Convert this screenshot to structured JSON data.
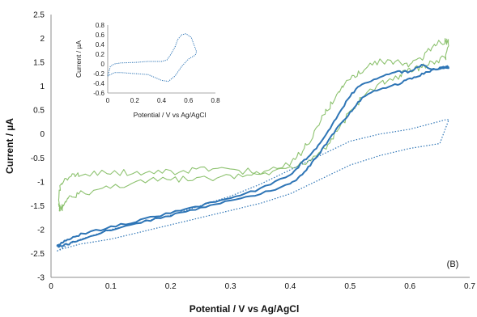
{
  "chart_data": [
    {
      "type": "line",
      "panel_label": "(B)",
      "xlabel": "Potential  / V vs Ag/AgCl",
      "ylabel": "Current / µA",
      "xlim": [
        0,
        0.7
      ],
      "ylim": [
        -3,
        2.5
      ],
      "x_ticks": [
        "0",
        "0.1",
        "0.2",
        "0.3",
        "0.4",
        "0.5",
        "0.6",
        "0.7"
      ],
      "y_ticks": [
        "2.5",
        "2",
        "1.5",
        "1",
        "0.5",
        "0",
        "-0.5",
        "-1",
        "-1.5",
        "-2",
        "-2.5",
        "-3"
      ],
      "grid": false,
      "colors": {
        "green": "#8dc26f",
        "blue": "#2e75b6",
        "dotted": "#2e75b6",
        "axis": "#8c8c8c"
      },
      "series": [
        {
          "style": "green-noisy",
          "x": [
            0.013,
            0.015,
            0.02,
            0.03,
            0.05,
            0.1,
            0.15,
            0.2,
            0.25,
            0.3,
            0.35,
            0.4,
            0.43,
            0.46,
            0.48,
            0.5,
            0.52,
            0.55,
            0.58,
            0.6,
            0.62,
            0.64,
            0.66,
            0.665,
            0.66,
            0.64,
            0.62,
            0.6,
            0.58,
            0.55,
            0.52,
            0.5,
            0.48,
            0.46,
            0.44,
            0.42,
            0.4,
            0.35,
            0.3,
            0.25,
            0.2,
            0.15,
            0.1,
            0.05,
            0.03,
            0.015,
            0.013
          ],
          "y": [
            -1.5,
            -1.6,
            -1.5,
            -1.35,
            -1.25,
            -1.1,
            -1.0,
            -0.95,
            -0.95,
            -0.9,
            -0.85,
            -0.75,
            -0.55,
            -0.25,
            0.1,
            0.45,
            0.75,
            1.05,
            1.2,
            1.35,
            1.4,
            1.5,
            1.6,
            1.9,
            1.95,
            1.85,
            1.55,
            1.45,
            1.5,
            1.5,
            1.35,
            1.15,
            0.85,
            0.45,
            0.0,
            -0.35,
            -0.6,
            -0.8,
            -0.75,
            -0.75,
            -0.8,
            -0.8,
            -0.8,
            -0.85,
            -0.9,
            -1.1,
            -1.5
          ]
        },
        {
          "style": "blue-solid",
          "x": [
            0.01,
            0.015,
            0.03,
            0.05,
            0.1,
            0.15,
            0.2,
            0.25,
            0.3,
            0.35,
            0.4,
            0.42,
            0.44,
            0.46,
            0.48,
            0.5,
            0.52,
            0.55,
            0.58,
            0.6,
            0.62,
            0.64,
            0.66,
            0.665,
            0.66,
            0.64,
            0.62,
            0.6,
            0.58,
            0.55,
            0.52,
            0.5,
            0.48,
            0.46,
            0.44,
            0.42,
            0.4,
            0.35,
            0.3,
            0.25,
            0.2,
            0.15,
            0.1,
            0.05,
            0.03,
            0.015,
            0.01
          ],
          "y": [
            -2.35,
            -2.35,
            -2.3,
            -2.2,
            -2.0,
            -1.85,
            -1.7,
            -1.55,
            -1.4,
            -1.25,
            -1.05,
            -0.85,
            -0.55,
            -0.2,
            0.15,
            0.45,
            0.75,
            0.95,
            1.05,
            1.15,
            1.25,
            1.35,
            1.4,
            1.4,
            1.4,
            1.35,
            1.45,
            1.3,
            1.3,
            1.2,
            1.05,
            0.8,
            0.4,
            0.0,
            -0.35,
            -0.6,
            -0.85,
            -1.15,
            -1.35,
            -1.5,
            -1.65,
            -1.8,
            -1.95,
            -2.1,
            -2.2,
            -2.3,
            -2.35
          ]
        },
        {
          "style": "blue-dotted",
          "x": [
            0.01,
            0.02,
            0.05,
            0.1,
            0.15,
            0.2,
            0.25,
            0.3,
            0.35,
            0.4,
            0.45,
            0.5,
            0.55,
            0.6,
            0.65,
            0.665,
            0.66,
            0.63,
            0.6,
            0.55,
            0.5,
            0.45,
            0.4,
            0.35,
            0.3,
            0.25,
            0.2,
            0.15,
            0.1,
            0.05,
            0.03,
            0.01
          ],
          "y": [
            -2.45,
            -2.4,
            -2.3,
            -2.2,
            -2.05,
            -1.9,
            -1.75,
            -1.6,
            -1.45,
            -1.25,
            -0.95,
            -0.65,
            -0.45,
            -0.3,
            -0.2,
            0.3,
            0.3,
            0.2,
            0.1,
            0.0,
            -0.15,
            -0.45,
            -0.75,
            -1.05,
            -1.3,
            -1.5,
            -1.7,
            -1.85,
            -2.0,
            -2.2,
            -2.3,
            -2.45
          ]
        }
      ]
    },
    {
      "type": "line",
      "role": "inset",
      "xlabel": "Potential / V vs Ag/AgCl",
      "ylabel": "Current / µA",
      "xlim": [
        0,
        0.8
      ],
      "ylim": [
        -0.6,
        0.8
      ],
      "x_ticks": [
        "0",
        "0.2",
        "0.4",
        "0.6",
        "0.8"
      ],
      "y_ticks": [
        "0.8",
        "0.6",
        "0.4",
        "0.2",
        "0",
        "-0.2",
        "-0.4",
        "-0.6"
      ],
      "grid": false,
      "series": [
        {
          "style": "blue-dotted-thin",
          "x": [
            0.0,
            0.05,
            0.1,
            0.2,
            0.3,
            0.35,
            0.4,
            0.45,
            0.5,
            0.55,
            0.6,
            0.65,
            0.66,
            0.62,
            0.58,
            0.55,
            0.52,
            0.5,
            0.47,
            0.44,
            0.4,
            0.3,
            0.2,
            0.1,
            0.05,
            0.02,
            0.0
          ],
          "y": [
            -0.25,
            -0.18,
            -0.18,
            -0.2,
            -0.22,
            -0.28,
            -0.34,
            -0.36,
            -0.25,
            -0.05,
            0.1,
            0.18,
            0.25,
            0.55,
            0.62,
            0.6,
            0.5,
            0.35,
            0.2,
            0.08,
            0.05,
            0.05,
            0.03,
            0.02,
            0.0,
            -0.05,
            -0.25
          ]
        }
      ]
    }
  ]
}
